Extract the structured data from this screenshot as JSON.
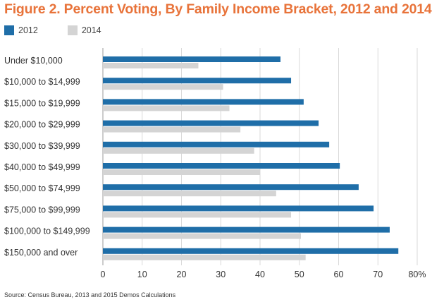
{
  "chart_data": {
    "type": "bar",
    "orientation": "horizontal",
    "title": "Figure 2. Percent Voting, By Family Income Bracket, 2012 and 2014",
    "categories": [
      "Under $10,000",
      "$10,000 to $14,999",
      "$15,000 to $19,999",
      "$20,000 to $29,999",
      "$30,000 to $39,999",
      "$40,000 to $49,999",
      "$50,000 to $74,999",
      "$75,000 to $99,999",
      "$100,000 to $149,999",
      "$150,000 and over"
    ],
    "series": [
      {
        "name": "2012",
        "color": "#1f6ea8",
        "values": [
          45.2,
          47.9,
          51.1,
          54.9,
          57.6,
          60.3,
          65.1,
          68.9,
          73.0,
          75.2
        ]
      },
      {
        "name": "2014",
        "color": "#d4d4d4",
        "values": [
          24.3,
          30.6,
          32.2,
          35.0,
          38.5,
          40.0,
          44.1,
          47.9,
          50.4,
          51.6
        ]
      }
    ],
    "xlim": [
      0,
      80
    ],
    "xticks": [
      "0",
      "10",
      "20",
      "30",
      "40",
      "50",
      "60",
      "70",
      "80%"
    ],
    "grid": true,
    "legend_position": "top-left",
    "source": "Source: Census Bureau, 2013 and 2015 Demos Calculations"
  }
}
